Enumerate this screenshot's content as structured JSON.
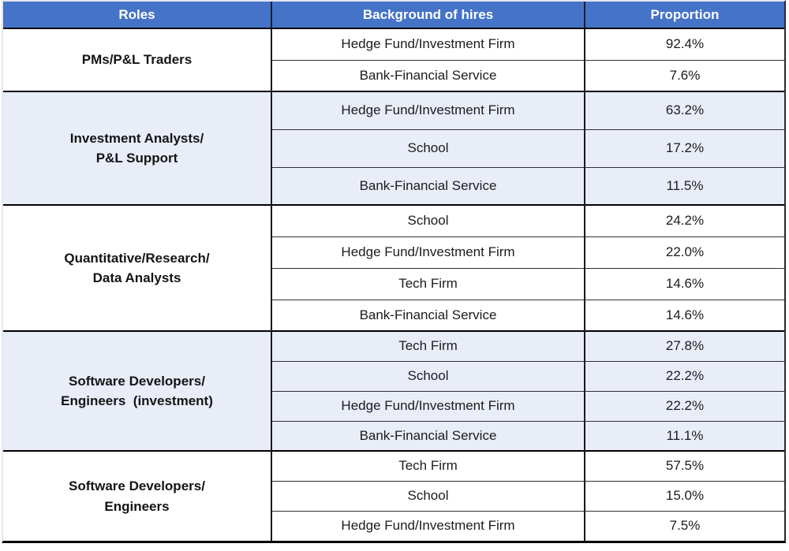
{
  "colors": {
    "header_bg": "#4573C8",
    "header_text": "#FFFFFF",
    "alt_row_bg": "#E9EDF8",
    "row_bg": "#FFFFFF",
    "border_dark": "#000000",
    "text": "#1C1C1C"
  },
  "table": {
    "headers": {
      "roles": "Roles",
      "background": "Background of hires",
      "proportion": "Proportion"
    },
    "groups": [
      {
        "role": "PMs/P&L Traders",
        "rows": [
          {
            "background": "Hedge Fund/Investment Firm",
            "proportion": "92.4%"
          },
          {
            "background": "Bank-Financial Service",
            "proportion": "7.6%"
          }
        ]
      },
      {
        "role": "Investment Analysts/\nP&L Support",
        "rows": [
          {
            "background": "Hedge Fund/Investment Firm",
            "proportion": "63.2%"
          },
          {
            "background": "School",
            "proportion": "17.2%"
          },
          {
            "background": "Bank-Financial Service",
            "proportion": "11.5%"
          }
        ]
      },
      {
        "role": "Quantitative/Research/\nData Analysts",
        "rows": [
          {
            "background": "School",
            "proportion": "24.2%"
          },
          {
            "background": "Hedge Fund/Investment Firm",
            "proportion": "22.0%"
          },
          {
            "background": "Tech Firm",
            "proportion": "14.6%"
          },
          {
            "background": "Bank-Financial Service",
            "proportion": "14.6%"
          }
        ]
      },
      {
        "role": "Software Developers/\nEngineers  (investment)",
        "rows": [
          {
            "background": "Tech Firm",
            "proportion": "27.8%"
          },
          {
            "background": "School",
            "proportion": "22.2%"
          },
          {
            "background": "Hedge Fund/Investment Firm",
            "proportion": "22.2%"
          },
          {
            "background": "Bank-Financial Service",
            "proportion": "11.1%"
          }
        ]
      },
      {
        "role": "Software Developers/\nEngineers",
        "rows": [
          {
            "background": "Tech Firm",
            "proportion": "57.5%"
          },
          {
            "background": "School",
            "proportion": "15.0%"
          },
          {
            "background": "Hedge Fund/Investment Firm",
            "proportion": "7.5%"
          }
        ]
      }
    ]
  },
  "chart_data": {
    "type": "table",
    "title": "",
    "columns": [
      "Roles",
      "Background of hires",
      "Proportion"
    ],
    "rows": [
      [
        "PMs/P&L Traders",
        "Hedge Fund/Investment Firm",
        "92.4%"
      ],
      [
        "PMs/P&L Traders",
        "Bank-Financial Service",
        "7.6%"
      ],
      [
        "Investment Analysts/P&L Support",
        "Hedge Fund/Investment Firm",
        "63.2%"
      ],
      [
        "Investment Analysts/P&L Support",
        "School",
        "17.2%"
      ],
      [
        "Investment Analysts/P&L Support",
        "Bank-Financial Service",
        "11.5%"
      ],
      [
        "Quantitative/Research/Data Analysts",
        "School",
        "24.2%"
      ],
      [
        "Quantitative/Research/Data Analysts",
        "Hedge Fund/Investment Firm",
        "22.0%"
      ],
      [
        "Quantitative/Research/Data Analysts",
        "Tech Firm",
        "14.6%"
      ],
      [
        "Quantitative/Research/Data Analysts",
        "Bank-Financial Service",
        "14.6%"
      ],
      [
        "Software Developers/Engineers (investment)",
        "Tech Firm",
        "27.8%"
      ],
      [
        "Software Developers/Engineers (investment)",
        "School",
        "22.2%"
      ],
      [
        "Software Developers/Engineers (investment)",
        "Hedge Fund/Investment Firm",
        "22.2%"
      ],
      [
        "Software Developers/Engineers (investment)",
        "Bank-Financial Service",
        "11.1%"
      ],
      [
        "Software Developers/Engineers",
        "Tech Firm",
        "57.5%"
      ],
      [
        "Software Developers/Engineers",
        "School",
        "15.0%"
      ],
      [
        "Software Developers/Engineers",
        "Hedge Fund/Investment Firm",
        "7.5%"
      ]
    ]
  }
}
